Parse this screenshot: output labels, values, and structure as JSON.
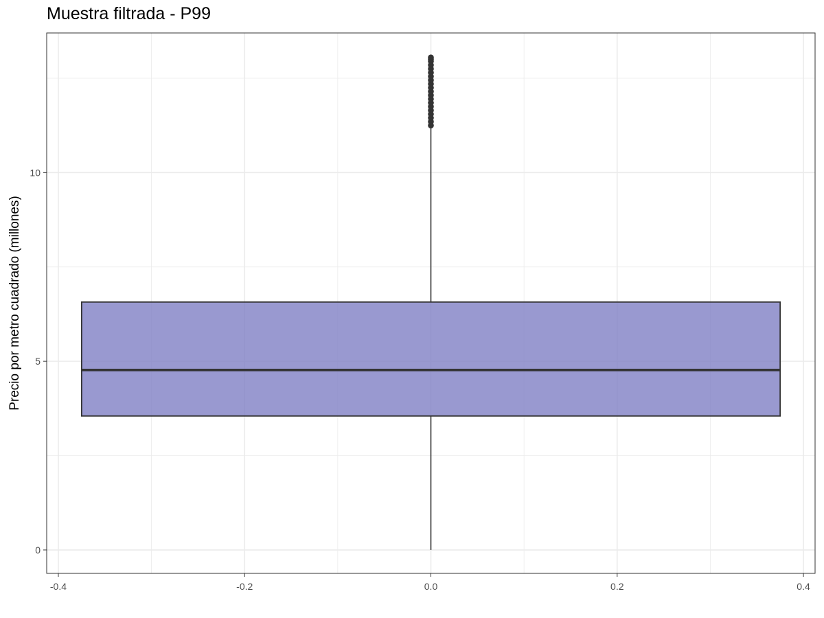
{
  "chart_data": {
    "type": "box",
    "title": "Muestra filtrada - P99",
    "xlabel": "",
    "ylabel": "Precio por metro cuadrado (millones)",
    "xlim": [
      -0.4125,
      0.4125
    ],
    "ylim": [
      -0.62,
      13.7
    ],
    "x_ticks": [
      -0.4,
      -0.2,
      0.0,
      0.2,
      0.4
    ],
    "x_tick_labels": [
      "-0.4",
      "-0.2",
      "0.0",
      "0.2",
      "0.4"
    ],
    "y_ticks": [
      0,
      5,
      10
    ],
    "y_tick_labels": [
      "0",
      "5",
      "10"
    ],
    "grid": true,
    "box": {
      "x_center": 0.0,
      "x_min": -0.375,
      "x_max": 0.375,
      "whisker_low": 0.0,
      "q1": 3.55,
      "median": 4.77,
      "q3": 6.57,
      "whisker_high": 11.2,
      "fill_color": "#7f7fc4",
      "line_color": "#333333"
    },
    "outliers": [
      11.25,
      11.35,
      11.45,
      11.55,
      11.65,
      11.75,
      11.85,
      11.95,
      12.05,
      12.15,
      12.25,
      12.35,
      12.45,
      12.55,
      12.65,
      12.75,
      12.85,
      12.95,
      13.0,
      13.05
    ]
  }
}
